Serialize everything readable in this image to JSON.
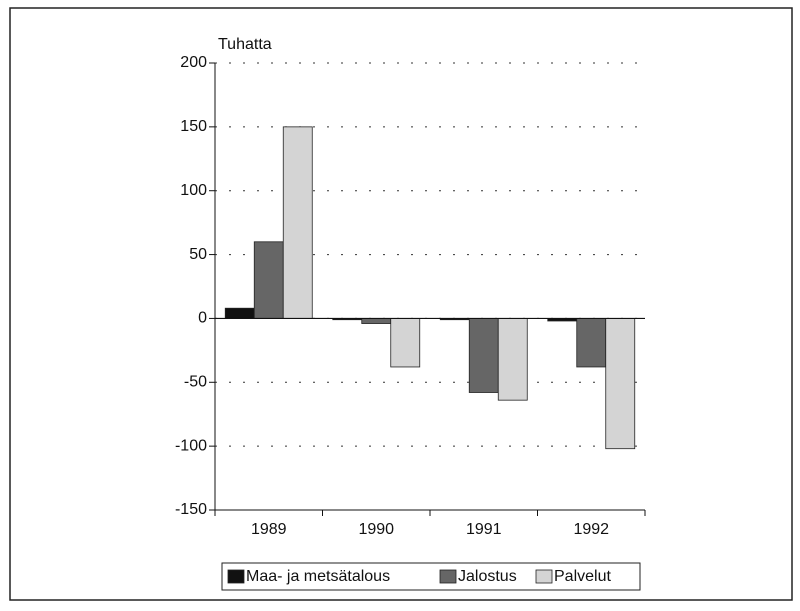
{
  "chart_data": {
    "type": "bar",
    "y_label": "Tuhatta",
    "categories": [
      "1989",
      "1990",
      "1991",
      "1992"
    ],
    "series": [
      {
        "name": "Maa- ja metsätalous",
        "color": "#111111",
        "values": [
          8,
          -1,
          -1,
          -2
        ]
      },
      {
        "name": "Jalostus",
        "color": "#666666",
        "values": [
          60,
          -4,
          -58,
          -38
        ]
      },
      {
        "name": "Palvelut",
        "color": "#d4d4d4",
        "values": [
          150,
          -38,
          -64,
          -102
        ]
      }
    ],
    "ylim": [
      -150,
      200
    ],
    "yticks": [
      -150,
      -100,
      -50,
      0,
      50,
      100,
      150,
      200
    ],
    "grid": true,
    "legend": "bottom"
  }
}
